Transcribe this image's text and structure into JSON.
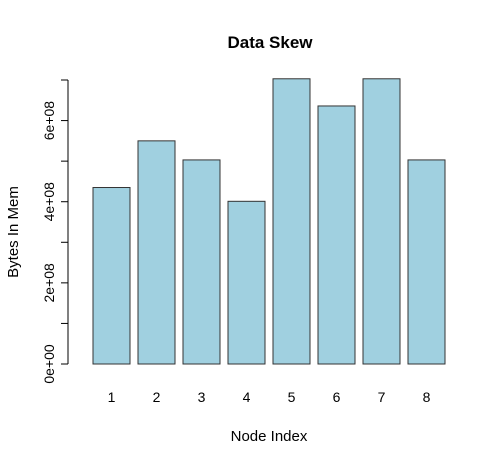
{
  "chart_data": {
    "type": "bar",
    "title": "Data Skew",
    "xlabel": "Node Index",
    "ylabel": "Bytes In Mem",
    "categories": [
      "1",
      "2",
      "3",
      "4",
      "5",
      "6",
      "7",
      "8"
    ],
    "values": [
      435000000,
      550000000,
      503000000,
      401000000,
      703000000,
      636000000,
      703000000,
      503000000
    ],
    "ylim": [
      0,
      700000000
    ],
    "y_ticks": [
      0,
      100000000,
      200000000,
      300000000,
      400000000,
      500000000,
      600000000,
      700000000
    ],
    "y_tick_labels": [
      {
        "value": 0,
        "label": "0e+00"
      },
      {
        "value": 200000000,
        "label": "2e+08"
      },
      {
        "value": 400000000,
        "label": "4e+08"
      },
      {
        "value": 600000000,
        "label": "6e+08"
      }
    ],
    "bar_color": "#a0d0e0",
    "bar_border_color": "#333333",
    "grid": false
  }
}
